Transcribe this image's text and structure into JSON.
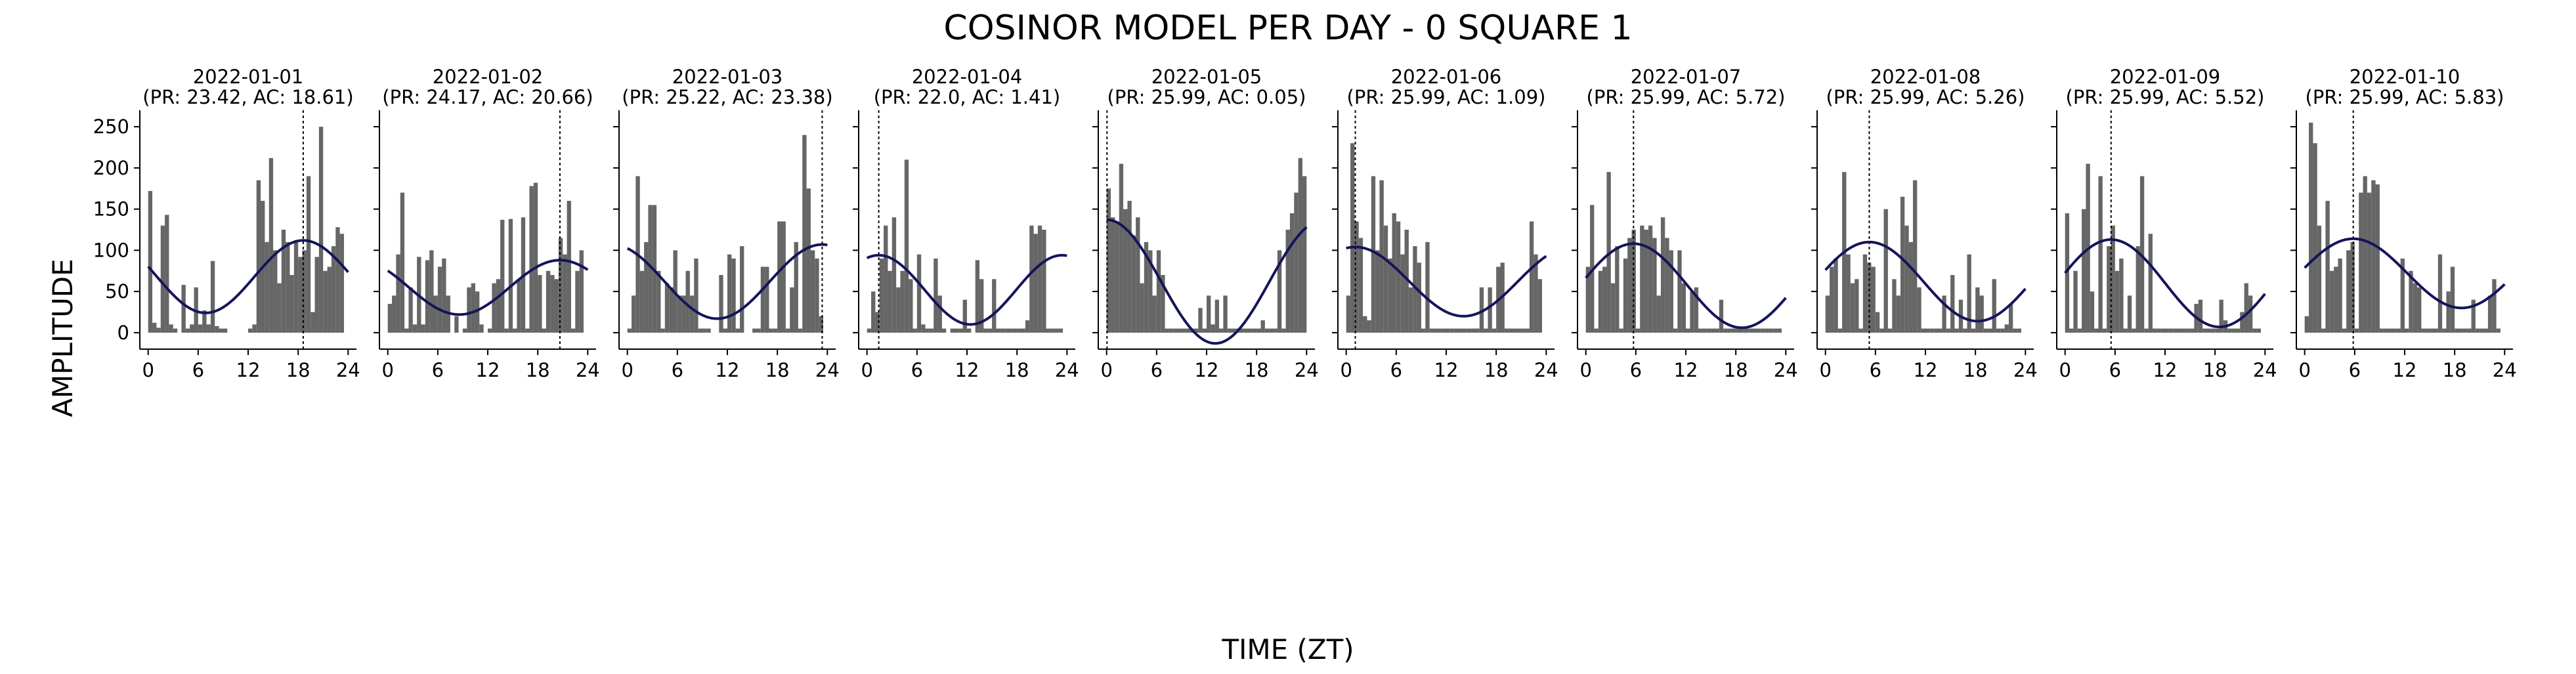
{
  "figure": {
    "title": "COSINOR MODEL PER DAY - 0 SQUARE 1",
    "xlabel": "TIME (ZT)",
    "ylabel": "AMPLITUDE"
  },
  "colors": {
    "bars": "#666666",
    "fit_line": "#14145a",
    "acrophase_line": "#000000",
    "axes": "#000000"
  },
  "chart_data": {
    "type": "bar",
    "subtype": "small multiples: hourly bars + fitted cosinor curve + dotted acrophase marker",
    "xlim": [
      -1,
      25
    ],
    "ylim": [
      -20,
      270
    ],
    "xticks": [
      0,
      6,
      12,
      18,
      24
    ],
    "yticks": [
      0,
      50,
      100,
      150,
      200,
      250
    ],
    "grid": false,
    "legend": "none",
    "panels": [
      {
        "date": "2022-01-01",
        "params": "(PR: 23.42, AC: 18.61)",
        "period": 23.42,
        "acrophase": 18.61,
        "mesor": 68,
        "amplitude": 44,
        "bar_x": [
          0,
          0.5,
          1,
          1.5,
          2,
          2.5,
          3,
          4,
          4.5,
          5,
          5.5,
          6,
          6.5,
          7,
          7.5,
          8,
          8.5,
          9,
          12,
          12.5,
          13,
          13.5,
          14,
          14.5,
          15,
          15.5,
          16,
          16.5,
          17,
          17.5,
          18,
          18.5,
          19,
          19.5,
          20,
          20.5,
          21,
          21.5,
          22,
          22.5,
          23
        ],
        "bar_values": [
          172,
          12,
          6,
          130,
          143,
          10,
          5,
          58,
          5,
          10,
          55,
          10,
          27,
          10,
          87,
          8,
          5,
          5,
          5,
          10,
          185,
          160,
          110,
          212,
          100,
          60,
          125,
          110,
          70,
          112,
          92,
          100,
          190,
          25,
          92,
          250,
          75,
          80,
          105,
          128,
          120
        ]
      },
      {
        "date": "2022-01-02",
        "params": "(PR: 24.17, AC: 20.66)",
        "period": 24.17,
        "acrophase": 20.66,
        "mesor": 55,
        "amplitude": 33,
        "bar_x": [
          0,
          0.5,
          1,
          1.5,
          2,
          2.5,
          3,
          3.5,
          4,
          4.5,
          5,
          5.5,
          6,
          6.5,
          7,
          8,
          9,
          9.5,
          10,
          10.5,
          11,
          12,
          12.5,
          13,
          13.5,
          14,
          14.5,
          15,
          15.5,
          16,
          16.5,
          17,
          17.5,
          18,
          18.5,
          19,
          19.5,
          20,
          20.5,
          21,
          21.5,
          22,
          22.5,
          23
        ],
        "bar_values": [
          35,
          45,
          95,
          170,
          5,
          55,
          10,
          92,
          10,
          88,
          100,
          45,
          80,
          90,
          45,
          20,
          5,
          55,
          60,
          50,
          10,
          5,
          60,
          65,
          137,
          5,
          138,
          5,
          65,
          140,
          5,
          178,
          182,
          70,
          5,
          75,
          70,
          65,
          115,
          95,
          160,
          5,
          75,
          100
        ]
      },
      {
        "date": "2022-01-03",
        "params": "(PR: 25.22, AC: 23.38)",
        "period": 25.22,
        "acrophase": 23.38,
        "mesor": 62,
        "amplitude": 45,
        "bar_x": [
          0,
          0.5,
          1,
          1.5,
          2,
          2.5,
          3,
          3.5,
          4,
          4.5,
          5,
          5.5,
          6,
          6.5,
          7,
          7.5,
          8,
          8.5,
          9,
          9.5,
          11,
          11.5,
          12,
          12.5,
          13,
          13.5,
          15,
          15.5,
          16,
          16.5,
          17,
          17.5,
          18,
          18.5,
          19,
          19.5,
          20,
          20.5,
          21,
          21.5,
          22,
          22.5,
          23
        ],
        "bar_values": [
          5,
          45,
          190,
          75,
          110,
          155,
          155,
          75,
          5,
          60,
          55,
          100,
          45,
          45,
          75,
          45,
          90,
          5,
          5,
          5,
          70,
          5,
          95,
          90,
          5,
          105,
          5,
          5,
          80,
          80,
          5,
          5,
          135,
          135,
          5,
          55,
          110,
          5,
          240,
          175,
          100,
          90,
          20
        ]
      },
      {
        "date": "2022-01-04",
        "params": "(PR: 22.0, AC: 1.41)",
        "period": 22.0,
        "acrophase": 1.41,
        "mesor": 52,
        "amplitude": 42,
        "bar_x": [
          0,
          0.5,
          1,
          1.5,
          2,
          2.5,
          3,
          3.5,
          4,
          4.5,
          5,
          5.5,
          6,
          6.5,
          7,
          7.5,
          8,
          8.5,
          9,
          10,
          10.5,
          11,
          11.5,
          12,
          13,
          13.5,
          14,
          14.5,
          15,
          15.5,
          16,
          16.5,
          17,
          17.5,
          18,
          18.5,
          19,
          19.5,
          20,
          20.5,
          21,
          21.5,
          22,
          22.5,
          23
        ],
        "bar_values": [
          5,
          50,
          25,
          90,
          130,
          75,
          140,
          55,
          75,
          210,
          65,
          5,
          95,
          10,
          5,
          5,
          90,
          45,
          5,
          5,
          5,
          5,
          40,
          5,
          88,
          65,
          5,
          5,
          65,
          5,
          5,
          5,
          5,
          5,
          5,
          5,
          15,
          130,
          120,
          130,
          125,
          5,
          5,
          5,
          5
        ]
      },
      {
        "date": "2022-01-05",
        "params": "(PR: 25.99, AC: 0.05)",
        "period": 25.99,
        "acrophase": 0.05,
        "mesor": 62,
        "amplitude": 75,
        "bar_x": [
          0,
          0.5,
          1,
          1.5,
          2,
          2.5,
          3,
          3.5,
          4,
          4.5,
          5,
          5.5,
          6,
          6.5,
          7,
          7.5,
          8,
          8.5,
          9,
          9.5,
          10,
          10.5,
          11,
          11.5,
          12,
          12.5,
          13,
          13.5,
          14,
          14.5,
          15,
          15.5,
          16,
          16.5,
          17,
          17.5,
          18,
          18.5,
          19,
          19.5,
          20,
          20.5,
          21,
          21.5,
          22,
          22.5,
          23,
          23.5
        ],
        "bar_values": [
          175,
          140,
          135,
          205,
          150,
          160,
          118,
          140,
          60,
          110,
          100,
          45,
          100,
          70,
          5,
          5,
          5,
          5,
          5,
          5,
          5,
          5,
          30,
          5,
          45,
          10,
          40,
          5,
          45,
          5,
          5,
          5,
          5,
          5,
          5,
          5,
          5,
          15,
          5,
          5,
          5,
          100,
          5,
          125,
          145,
          170,
          212,
          190
        ]
      },
      {
        "date": "2022-01-06",
        "params": "(PR: 25.99, AC: 1.09)",
        "period": 25.99,
        "acrophase": 1.09,
        "mesor": 62,
        "amplitude": 42,
        "bar_x": [
          0,
          0.5,
          1,
          1.5,
          2,
          2.5,
          3,
          3.5,
          4,
          4.5,
          5,
          5.5,
          6,
          6.5,
          7,
          7.5,
          8,
          8.5,
          9,
          9.5,
          10,
          10.5,
          11,
          11.5,
          12,
          12.5,
          13,
          13.5,
          14,
          14.5,
          15,
          15.5,
          16,
          16.5,
          17,
          17.5,
          18,
          18.5,
          19,
          19.5,
          20,
          20.5,
          21,
          21.5,
          22,
          22.5,
          23
        ],
        "bar_values": [
          45,
          230,
          135,
          115,
          20,
          15,
          190,
          100,
          185,
          130,
          90,
          145,
          135,
          95,
          125,
          55,
          105,
          85,
          5,
          110,
          5,
          5,
          5,
          5,
          5,
          5,
          5,
          5,
          5,
          5,
          5,
          5,
          55,
          5,
          55,
          5,
          80,
          85,
          5,
          5,
          5,
          5,
          5,
          5,
          135,
          95,
          65
        ]
      },
      {
        "date": "2022-01-07",
        "params": "(PR: 25.99, AC: 5.72)",
        "period": 25.99,
        "acrophase": 5.72,
        "mesor": 57,
        "amplitude": 51,
        "bar_x": [
          0,
          0.5,
          1,
          1.5,
          2,
          2.5,
          3,
          3.5,
          4,
          4.5,
          5,
          5.5,
          6,
          6.5,
          7,
          7.5,
          8,
          8.5,
          9,
          9.5,
          10,
          10.5,
          11,
          11.5,
          12,
          12.5,
          13,
          13.5,
          14,
          14.5,
          15,
          15.5,
          16,
          16.5,
          17,
          17.5,
          18,
          18.5,
          19,
          19.5,
          20,
          20.5,
          21,
          21.5,
          22,
          22.5,
          23
        ],
        "bar_values": [
          80,
          155,
          5,
          75,
          80,
          195,
          60,
          105,
          5,
          90,
          115,
          125,
          5,
          130,
          125,
          130,
          115,
          45,
          140,
          115,
          100,
          5,
          100,
          60,
          5,
          50,
          55,
          5,
          5,
          5,
          5,
          5,
          40,
          5,
          5,
          5,
          5,
          5,
          5,
          5,
          5,
          5,
          5,
          5,
          5,
          5,
          5
        ]
      },
      {
        "date": "2022-01-08",
        "params": "(PR: 25.99, AC: 5.26)",
        "period": 25.99,
        "acrophase": 5.26,
        "mesor": 62,
        "amplitude": 48,
        "bar_x": [
          0,
          0.5,
          1,
          1.5,
          2,
          2.5,
          3,
          3.5,
          4,
          4.5,
          5,
          5.5,
          6,
          6.5,
          7,
          7.5,
          8,
          8.5,
          9,
          9.5,
          10,
          10.5,
          11,
          11.5,
          12,
          12.5,
          13,
          13.5,
          14,
          14.5,
          15,
          15.5,
          16,
          16.5,
          17,
          17.5,
          18,
          18.5,
          19,
          19.5,
          20,
          20.5,
          21,
          21.5,
          22,
          22.5,
          23
        ],
        "bar_values": [
          45,
          80,
          90,
          5,
          195,
          95,
          60,
          65,
          5,
          95,
          85,
          80,
          25,
          5,
          150,
          5,
          65,
          45,
          165,
          130,
          110,
          185,
          55,
          5,
          5,
          5,
          5,
          5,
          45,
          5,
          70,
          5,
          40,
          5,
          95,
          5,
          55,
          45,
          5,
          5,
          65,
          5,
          5,
          10,
          35,
          5,
          5
        ]
      },
      {
        "date": "2022-01-09",
        "params": "(PR: 25.99, AC: 5.52)",
        "period": 25.99,
        "acrophase": 5.52,
        "mesor": 60,
        "amplitude": 53,
        "bar_x": [
          0,
          0.5,
          1,
          1.5,
          2,
          2.5,
          3,
          3.5,
          4,
          4.5,
          5,
          5.5,
          6,
          6.5,
          7,
          7.5,
          8,
          8.5,
          9,
          9.5,
          10,
          10.5,
          11,
          11.5,
          12,
          12.5,
          13,
          13.5,
          14,
          14.5,
          15,
          15.5,
          16,
          16.5,
          17,
          17.5,
          18,
          18.5,
          19,
          19.5,
          20,
          20.5,
          21,
          21.5,
          22,
          22.5,
          23
        ],
        "bar_values": [
          145,
          5,
          75,
          5,
          150,
          205,
          50,
          5,
          190,
          5,
          105,
          130,
          75,
          90,
          5,
          45,
          5,
          105,
          190,
          5,
          120,
          5,
          5,
          5,
          5,
          5,
          5,
          5,
          5,
          5,
          5,
          35,
          40,
          5,
          5,
          5,
          5,
          40,
          15,
          5,
          5,
          5,
          25,
          60,
          45,
          5,
          5
        ]
      },
      {
        "date": "2022-01-10",
        "params": "(PR: 25.99, AC: 5.83)",
        "period": 25.99,
        "acrophase": 5.83,
        "mesor": 72,
        "amplitude": 42,
        "bar_x": [
          0,
          0.5,
          1,
          1.5,
          2,
          2.5,
          3,
          3.5,
          4,
          4.5,
          5,
          5.5,
          6,
          6.5,
          7,
          7.5,
          8,
          8.5,
          9,
          9.5,
          10,
          10.5,
          11,
          11.5,
          12,
          12.5,
          13,
          13.5,
          14,
          14.5,
          15,
          15.5,
          16,
          16.5,
          17,
          17.5,
          18,
          18.5,
          19,
          19.5,
          20,
          20.5,
          21,
          21.5,
          22,
          22.5,
          23
        ],
        "bar_values": [
          20,
          255,
          230,
          130,
          5,
          160,
          75,
          80,
          90,
          5,
          100,
          110,
          5,
          170,
          190,
          170,
          185,
          180,
          5,
          5,
          5,
          5,
          5,
          90,
          5,
          75,
          60,
          55,
          5,
          5,
          5,
          5,
          95,
          5,
          50,
          80,
          5,
          5,
          5,
          5,
          40,
          5,
          5,
          5,
          45,
          65,
          5
        ]
      }
    ]
  }
}
